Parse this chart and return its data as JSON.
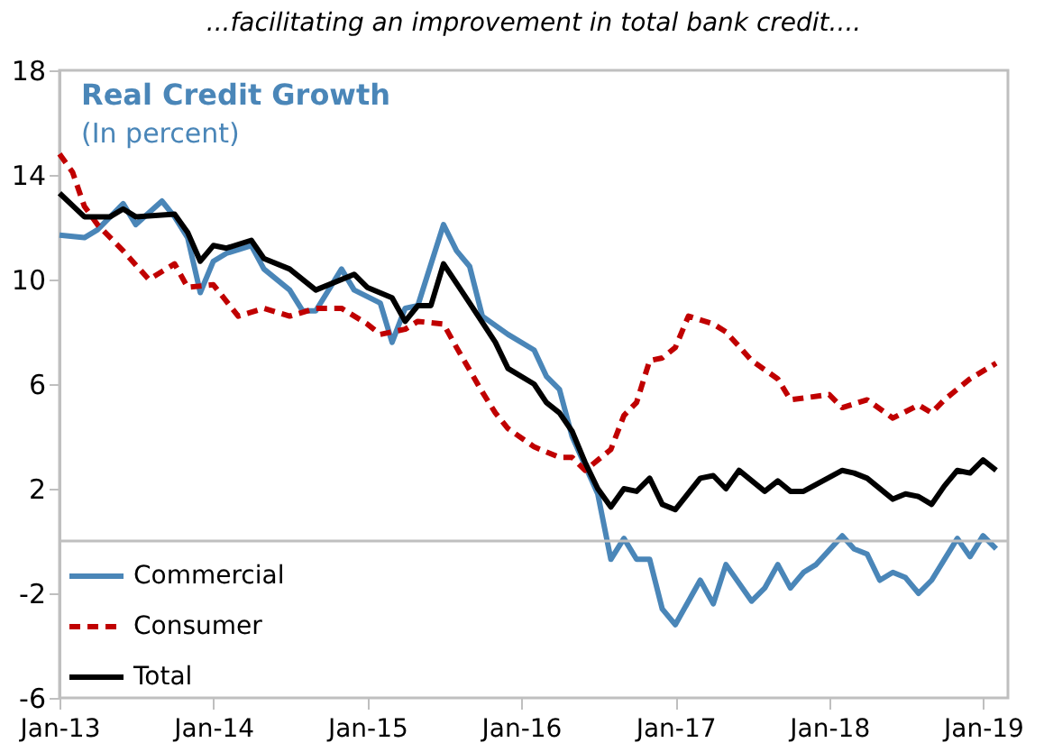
{
  "chart_data": {
    "type": "line",
    "title": "...facilitating an improvement in total bank credit....",
    "subtitle": "Real Credit Growth",
    "annotations": [
      "(In percent)"
    ],
    "ylim": [
      -6,
      18
    ],
    "yticks": [
      -6,
      -2,
      2,
      6,
      10,
      14,
      18
    ],
    "xlim": [
      "2013-01",
      "2019-03"
    ],
    "xticks": [
      {
        "value": "2013-01",
        "label": "Jan-13"
      },
      {
        "value": "2014-01",
        "label": "Jan-14"
      },
      {
        "value": "2015-01",
        "label": "Jan-15"
      },
      {
        "value": "2016-01",
        "label": "Jan-16"
      },
      {
        "value": "2017-01",
        "label": "Jan-17"
      },
      {
        "value": "2018-01",
        "label": "Jan-18"
      },
      {
        "value": "2019-01",
        "label": "Jan-19"
      }
    ],
    "grid": false,
    "legend": "bottom left",
    "marker": "none",
    "ref_lines": [
      {
        "axis": "y",
        "value": 0,
        "color": "#bfbfbf"
      }
    ],
    "series": [
      {
        "name": "Commercial",
        "color": "#4a86b8",
        "line_style": "solid",
        "x": [
          "2013-01",
          "2013-03",
          "2013-04",
          "2013-06",
          "2013-07",
          "2013-09",
          "2013-10",
          "2013-11",
          "2013-12",
          "2014-01",
          "2014-02",
          "2014-04",
          "2014-05",
          "2014-07",
          "2014-08",
          "2014-09",
          "2014-11",
          "2014-12",
          "2015-02",
          "2015-03",
          "2015-04",
          "2015-05",
          "2015-07",
          "2015-08",
          "2015-09",
          "2015-10",
          "2015-12",
          "2016-02",
          "2016-03",
          "2016-04",
          "2016-05",
          "2016-07",
          "2016-08",
          "2016-09",
          "2016-10",
          "2016-11",
          "2016-12",
          "2017-01",
          "2017-03",
          "2017-04",
          "2017-05",
          "2017-07",
          "2017-08",
          "2017-09",
          "2017-10",
          "2017-11",
          "2017-12",
          "2018-02",
          "2018-03",
          "2018-04",
          "2018-05",
          "2018-06",
          "2018-07",
          "2018-08",
          "2018-09",
          "2018-11",
          "2018-12",
          "2019-01",
          "2019-02"
        ],
        "values": [
          11.7,
          11.6,
          11.9,
          12.9,
          12.1,
          13.0,
          12.4,
          11.6,
          9.5,
          10.7,
          11.0,
          11.3,
          10.4,
          9.6,
          8.8,
          8.8,
          10.4,
          9.6,
          9.1,
          7.6,
          8.9,
          9.0,
          12.1,
          11.1,
          10.5,
          8.6,
          7.9,
          7.3,
          6.3,
          5.8,
          4.0,
          1.8,
          -0.7,
          0.1,
          -0.7,
          -0.7,
          -2.6,
          -3.2,
          -1.5,
          -2.4,
          -0.9,
          -2.3,
          -1.8,
          -0.9,
          -1.8,
          -1.2,
          -0.9,
          0.2,
          -0.3,
          -0.5,
          -1.5,
          -1.2,
          -1.4,
          -2.0,
          -1.5,
          0.1,
          -0.6,
          0.2,
          -0.3
        ]
      },
      {
        "name": "Consumer",
        "color": "#c00000",
        "line_style": "dashed",
        "x": [
          "2013-01",
          "2013-02",
          "2013-03",
          "2013-04",
          "2013-06",
          "2013-08",
          "2013-10",
          "2013-11",
          "2014-01",
          "2014-03",
          "2014-05",
          "2014-07",
          "2014-09",
          "2014-11",
          "2015-01",
          "2015-02",
          "2015-04",
          "2015-05",
          "2015-07",
          "2015-08",
          "2015-10",
          "2015-11",
          "2015-12",
          "2016-02",
          "2016-04",
          "2016-05",
          "2016-06",
          "2016-08",
          "2016-09",
          "2016-10",
          "2016-11",
          "2016-12",
          "2017-01",
          "2017-02",
          "2017-04",
          "2017-05",
          "2017-07",
          "2017-09",
          "2017-10",
          "2018-01",
          "2018-02",
          "2018-04",
          "2018-06",
          "2018-08",
          "2018-09",
          "2018-10",
          "2018-12",
          "2019-02"
        ],
        "values": [
          14.8,
          14.1,
          12.8,
          12.1,
          11.1,
          10.0,
          10.6,
          9.7,
          9.8,
          8.6,
          8.9,
          8.6,
          8.9,
          8.9,
          8.3,
          7.9,
          8.1,
          8.4,
          8.3,
          7.4,
          5.7,
          4.9,
          4.3,
          3.6,
          3.2,
          3.2,
          2.7,
          3.5,
          4.8,
          5.3,
          6.9,
          7.0,
          7.4,
          8.6,
          8.3,
          8.0,
          6.9,
          6.2,
          5.4,
          5.6,
          5.1,
          5.4,
          4.7,
          5.2,
          4.9,
          5.4,
          6.2,
          6.8
        ]
      },
      {
        "name": "Total",
        "color": "#000000",
        "line_style": "solid",
        "x": [
          "2013-01",
          "2013-03",
          "2013-05",
          "2013-06",
          "2013-07",
          "2013-10",
          "2013-11",
          "2013-12",
          "2014-01",
          "2014-02",
          "2014-04",
          "2014-05",
          "2014-07",
          "2014-09",
          "2014-12",
          "2015-01",
          "2015-03",
          "2015-04",
          "2015-05",
          "2015-06",
          "2015-07",
          "2015-09",
          "2015-11",
          "2015-12",
          "2016-02",
          "2016-03",
          "2016-04",
          "2016-05",
          "2016-06",
          "2016-07",
          "2016-08",
          "2016-09",
          "2016-10",
          "2016-11",
          "2016-12",
          "2017-01",
          "2017-03",
          "2017-04",
          "2017-05",
          "2017-06",
          "2017-08",
          "2017-09",
          "2017-10",
          "2017-11",
          "2018-02",
          "2018-03",
          "2018-04",
          "2018-06",
          "2018-07",
          "2018-08",
          "2018-09",
          "2018-10",
          "2018-11",
          "2018-12",
          "2019-01",
          "2019-02"
        ],
        "values": [
          13.3,
          12.4,
          12.4,
          12.7,
          12.4,
          12.5,
          11.8,
          10.7,
          11.3,
          11.2,
          11.5,
          10.8,
          10.4,
          9.6,
          10.2,
          9.7,
          9.3,
          8.4,
          9.0,
          9.0,
          10.6,
          9.1,
          7.6,
          6.6,
          6.0,
          5.3,
          4.9,
          4.2,
          3.0,
          2.0,
          1.3,
          2.0,
          1.9,
          2.4,
          1.4,
          1.2,
          2.4,
          2.5,
          2.0,
          2.7,
          1.9,
          2.3,
          1.9,
          1.9,
          2.7,
          2.6,
          2.4,
          1.6,
          1.8,
          1.7,
          1.4,
          2.1,
          2.7,
          2.6,
          3.1,
          2.7
        ]
      }
    ]
  }
}
